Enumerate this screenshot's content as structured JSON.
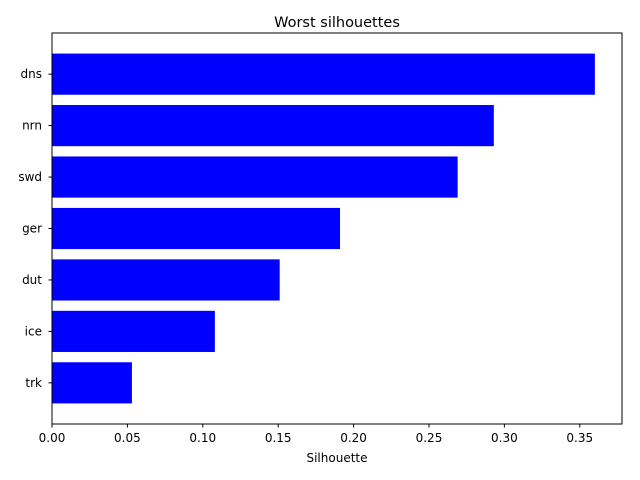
{
  "chart_data": {
    "type": "bar",
    "orientation": "horizontal",
    "title": "Worst silhouettes",
    "xlabel": "Silhouette",
    "ylabel": "",
    "categories": [
      "dns",
      "nrn",
      "swd",
      "ger",
      "dut",
      "ice",
      "trk"
    ],
    "values": [
      0.36,
      0.293,
      0.269,
      0.191,
      0.151,
      0.108,
      0.053
    ],
    "xlim": [
      0.0,
      0.378
    ],
    "xticks": [
      0.0,
      0.05,
      0.1,
      0.15,
      0.2,
      0.25,
      0.3,
      0.35
    ],
    "xtick_labels": [
      "0.00",
      "0.05",
      "0.10",
      "0.15",
      "0.20",
      "0.25",
      "0.30",
      "0.35"
    ],
    "grid": false,
    "legend": "none",
    "bar_color": "#0000ff"
  }
}
